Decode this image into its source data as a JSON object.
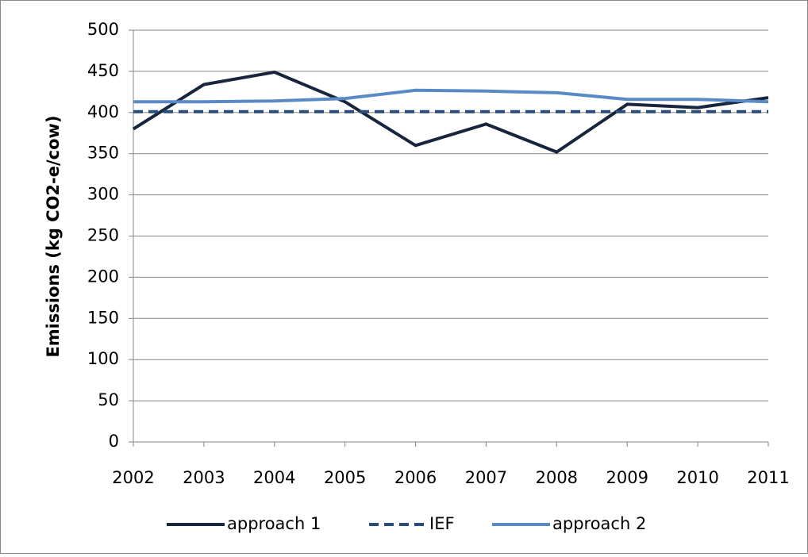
{
  "chart_data": {
    "type": "line",
    "y_label": "Emissions (kg CO2-e/cow)",
    "x": [
      2002,
      2003,
      2004,
      2005,
      2006,
      2007,
      2008,
      2009,
      2010,
      2011
    ],
    "xlim": [
      2002,
      2011
    ],
    "xticks": [
      2002,
      2003,
      2004,
      2005,
      2006,
      2007,
      2008,
      2009,
      2010,
      2011
    ],
    "ylim": [
      0,
      500
    ],
    "yticks": [
      0,
      50,
      100,
      150,
      200,
      250,
      300,
      350,
      400,
      450,
      500
    ],
    "grid": true,
    "legend": "bottom",
    "series": [
      {
        "name": "approach 1",
        "color": "#17253d",
        "style": "solid",
        "values": [
          380,
          434,
          449,
          413,
          360,
          386,
          352,
          410,
          406,
          418
        ]
      },
      {
        "name": "IEF",
        "color": "#2a4d7a",
        "style": "dashed",
        "values": [
          401,
          401,
          401,
          401,
          401,
          401,
          401,
          401,
          401,
          401
        ]
      },
      {
        "name": "approach 2",
        "color": "#5a8ac6",
        "style": "solid",
        "values": [
          413,
          413,
          414,
          417,
          427,
          426,
          424,
          416,
          416,
          413
        ]
      }
    ]
  }
}
